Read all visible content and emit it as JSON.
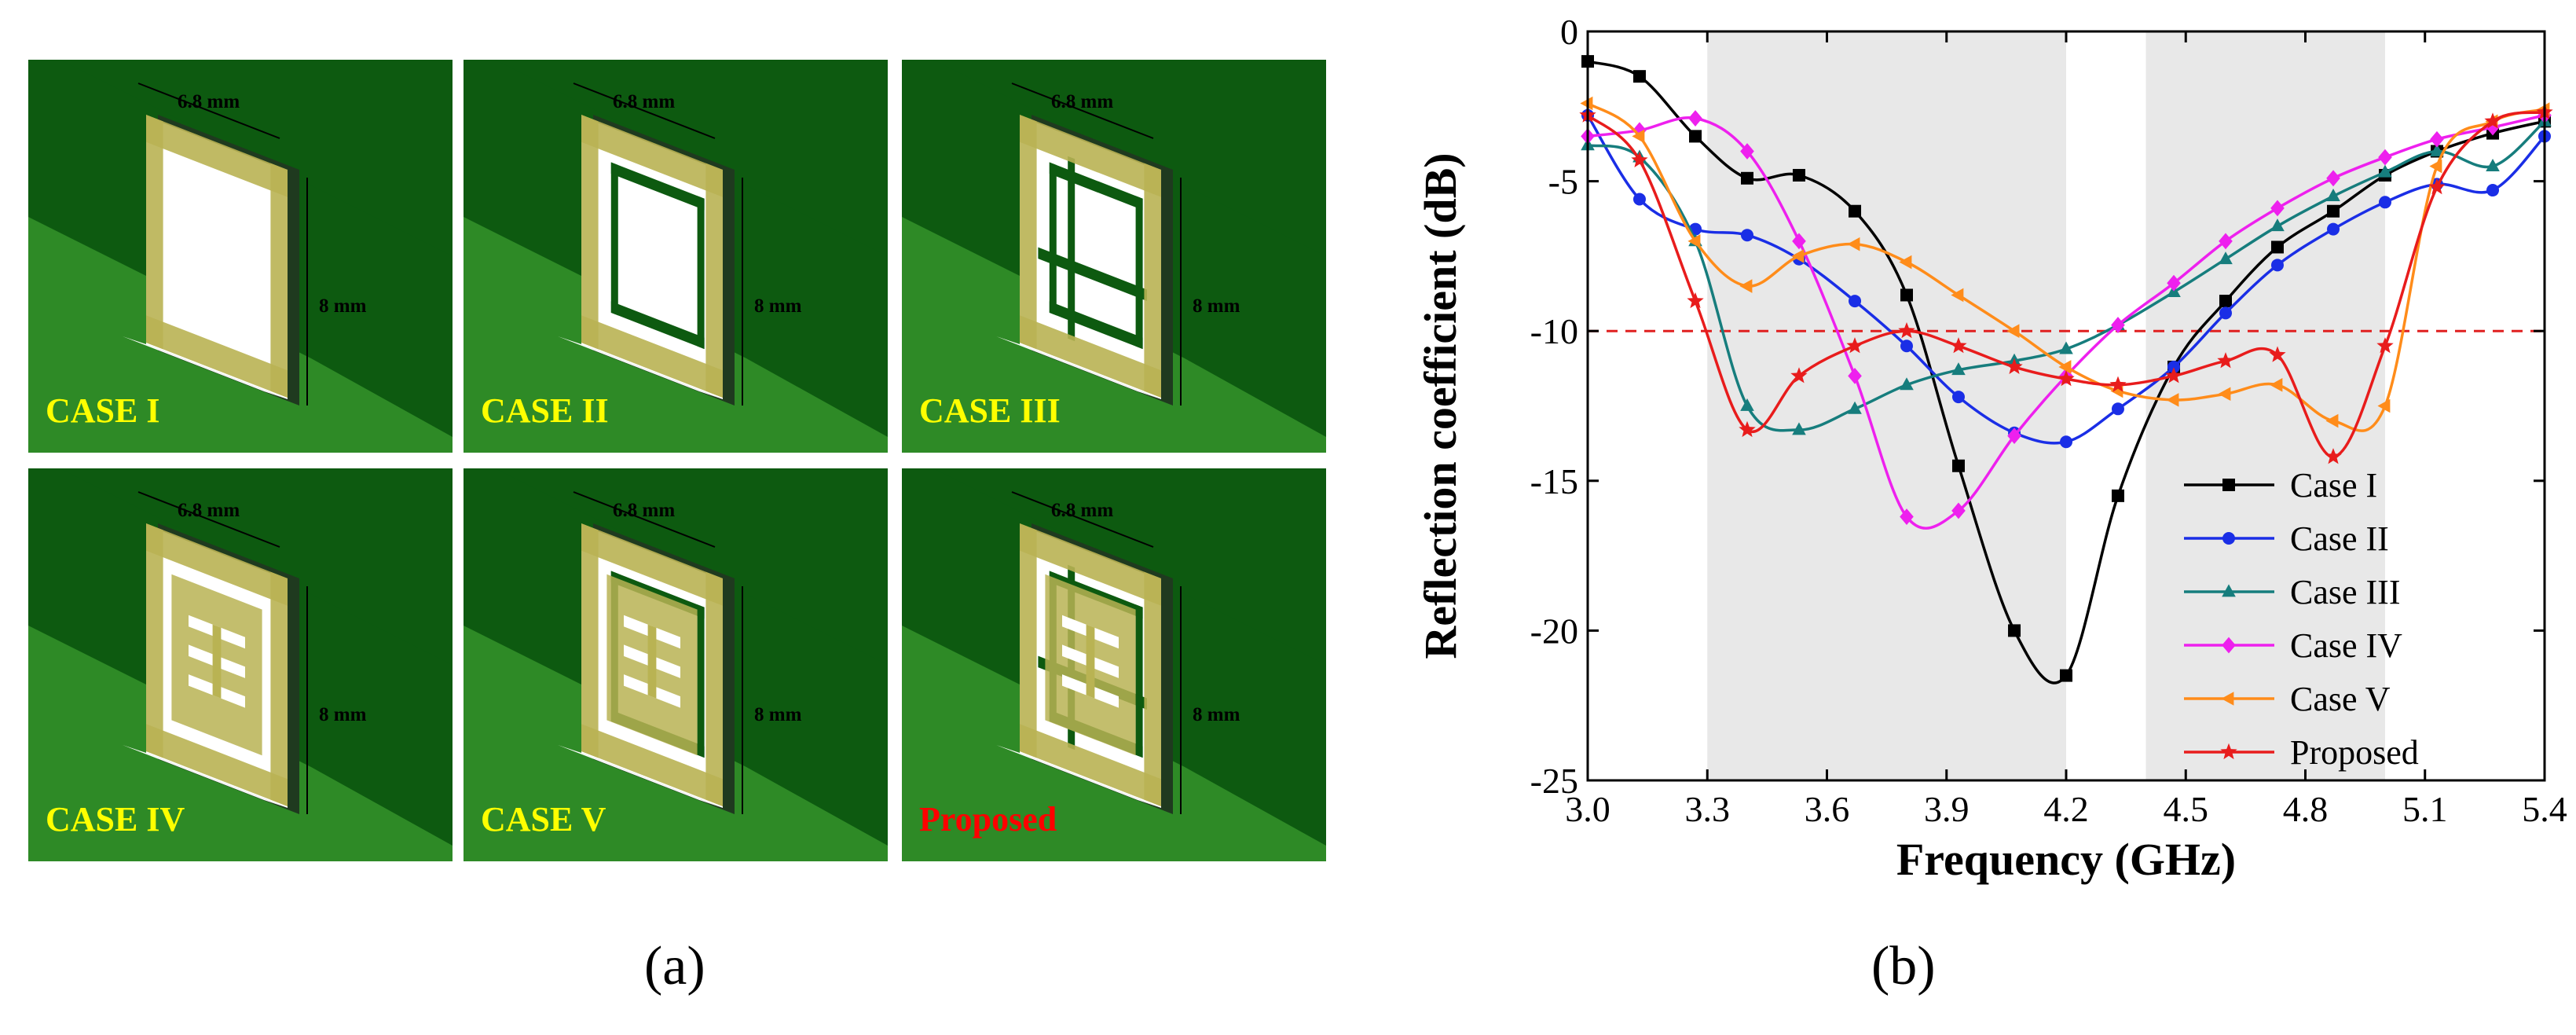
{
  "panel_a": {
    "caption": "(a)",
    "dim_width": "6.8 mm",
    "dim_height": "8 mm",
    "cases": [
      {
        "label": "CASE I",
        "label_color": "#ffff00",
        "pattern": "ring"
      },
      {
        "label": "CASE II",
        "label_color": "#ffff00",
        "pattern": "ring-inner-back"
      },
      {
        "label": "CASE III",
        "label_color": "#ffff00",
        "pattern": "ring-double-back"
      },
      {
        "label": "CASE IV",
        "label_color": "#ffff00",
        "pattern": "ring-slots"
      },
      {
        "label": "CASE V",
        "label_color": "#ffff00",
        "pattern": "ring-slots-back"
      },
      {
        "label": "Proposed",
        "label_color": "#ff0000",
        "pattern": "proposed"
      }
    ],
    "colors": {
      "substrate_dark": "#0d5a10",
      "substrate_light": "#2e8a26",
      "patch": "#b9b353",
      "backing": "#ffffff"
    }
  },
  "panel_b": {
    "caption": "(b)"
  },
  "chart_data": {
    "type": "line",
    "title": "",
    "xlabel": "Frequency (GHz)",
    "ylabel": "Reflection coefficient (dB)",
    "xlim": [
      3.0,
      5.4
    ],
    "ylim": [
      -25,
      0
    ],
    "xticks": [
      3.0,
      3.3,
      3.6,
      3.9,
      4.2,
      4.5,
      4.8,
      5.1,
      5.4
    ],
    "xtick_labels": [
      "3.0",
      "3.3",
      "3.6",
      "3.9",
      "4.2",
      "4.5",
      "4.8",
      "5.1",
      "5.4"
    ],
    "yticks": [
      0,
      -5,
      -10,
      -15,
      -20,
      -25
    ],
    "ytick_labels": [
      "0",
      "-5",
      "-10",
      "-15",
      "-20",
      "-25"
    ],
    "shaded_bands": [
      [
        3.3,
        4.2
      ],
      [
        4.4,
        5.0
      ]
    ],
    "reference_line": {
      "y": -10,
      "color": "#e02020",
      "style": "dashed"
    },
    "legend_position": "lower-right",
    "series": [
      {
        "name": "Case I",
        "color": "#000000",
        "marker": "square",
        "x": [
          3.0,
          3.13,
          3.27,
          3.4,
          3.53,
          3.67,
          3.8,
          3.93,
          4.07,
          4.2,
          4.33,
          4.47,
          4.6,
          4.73,
          4.87,
          5.0,
          5.13,
          5.27,
          5.4
        ],
        "y": [
          -1.0,
          -1.5,
          -3.5,
          -4.9,
          -4.8,
          -6.0,
          -8.8,
          -14.5,
          -20.0,
          -21.5,
          -15.5,
          -11.2,
          -9.0,
          -7.2,
          -6.0,
          -4.8,
          -4.0,
          -3.4,
          -3.0
        ]
      },
      {
        "name": "Case II",
        "color": "#1a2ee6",
        "marker": "circle",
        "x": [
          3.0,
          3.13,
          3.27,
          3.4,
          3.53,
          3.67,
          3.8,
          3.93,
          4.07,
          4.2,
          4.33,
          4.47,
          4.6,
          4.73,
          4.87,
          5.0,
          5.13,
          5.27,
          5.4
        ],
        "y": [
          -2.8,
          -5.6,
          -6.6,
          -6.8,
          -7.6,
          -9.0,
          -10.5,
          -12.2,
          -13.4,
          -13.7,
          -12.6,
          -11.2,
          -9.4,
          -7.8,
          -6.6,
          -5.7,
          -5.1,
          -5.3,
          -3.5
        ]
      },
      {
        "name": "Case III",
        "color": "#167d7d",
        "marker": "triangle",
        "x": [
          3.0,
          3.13,
          3.27,
          3.4,
          3.53,
          3.67,
          3.8,
          3.93,
          4.07,
          4.2,
          4.33,
          4.47,
          4.6,
          4.73,
          4.87,
          5.0,
          5.13,
          5.27,
          5.4
        ],
        "y": [
          -3.8,
          -4.2,
          -7.0,
          -12.5,
          -13.3,
          -12.6,
          -11.8,
          -11.3,
          -11.0,
          -10.6,
          -9.8,
          -8.7,
          -7.6,
          -6.5,
          -5.5,
          -4.7,
          -4.0,
          -4.5,
          -3.0
        ]
      },
      {
        "name": "Case IV",
        "color": "#ee20ee",
        "marker": "diamond",
        "x": [
          3.0,
          3.13,
          3.27,
          3.4,
          3.53,
          3.67,
          3.8,
          3.93,
          4.07,
          4.2,
          4.33,
          4.47,
          4.6,
          4.73,
          4.87,
          5.0,
          5.13,
          5.27,
          5.4
        ],
        "y": [
          -3.5,
          -3.3,
          -2.9,
          -4.0,
          -7.0,
          -11.5,
          -16.2,
          -16.0,
          -13.5,
          -11.5,
          -9.8,
          -8.4,
          -7.0,
          -5.9,
          -4.9,
          -4.2,
          -3.6,
          -3.2,
          -2.8
        ]
      },
      {
        "name": "Case V",
        "color": "#ff8c1a",
        "marker": "triangle-left",
        "x": [
          3.0,
          3.13,
          3.27,
          3.4,
          3.53,
          3.67,
          3.8,
          3.93,
          4.07,
          4.2,
          4.33,
          4.47,
          4.6,
          4.73,
          4.87,
          5.0,
          5.13,
          5.27,
          5.4
        ],
        "y": [
          -2.4,
          -3.5,
          -7.0,
          -8.5,
          -7.5,
          -7.1,
          -7.7,
          -8.8,
          -10.0,
          -11.2,
          -12.0,
          -12.3,
          -12.1,
          -11.8,
          -13.0,
          -12.5,
          -4.5,
          -3.0,
          -2.6
        ]
      },
      {
        "name": "Proposed",
        "color": "#e81c1c",
        "marker": "star",
        "x": [
          3.0,
          3.13,
          3.27,
          3.4,
          3.53,
          3.67,
          3.8,
          3.93,
          4.07,
          4.2,
          4.33,
          4.47,
          4.6,
          4.73,
          4.87,
          5.0,
          5.13,
          5.27,
          5.4
        ],
        "y": [
          -2.8,
          -4.3,
          -9.0,
          -13.3,
          -11.5,
          -10.5,
          -10.0,
          -10.5,
          -11.2,
          -11.6,
          -11.8,
          -11.5,
          -11.0,
          -10.8,
          -14.2,
          -10.5,
          -5.2,
          -3.0,
          -2.7
        ]
      }
    ]
  }
}
